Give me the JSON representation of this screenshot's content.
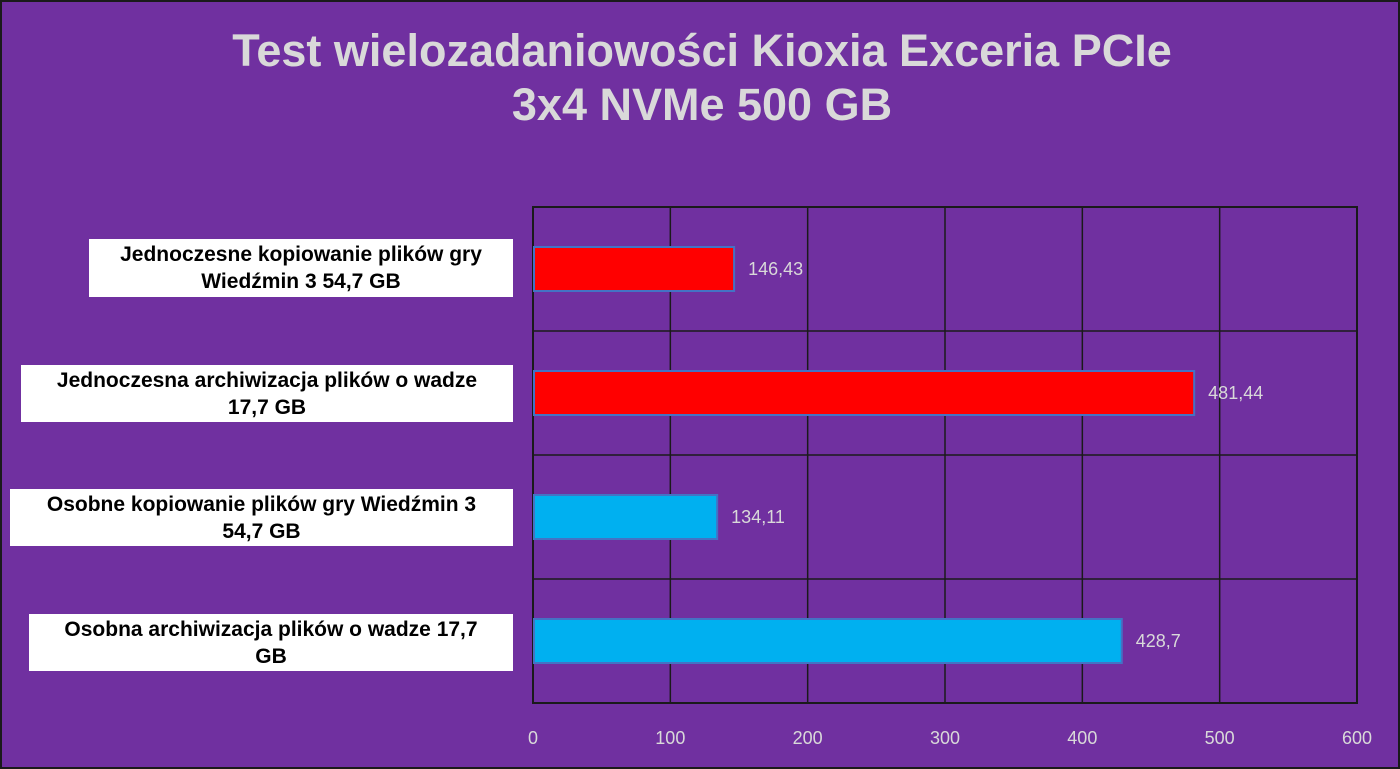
{
  "chart_data": {
    "type": "bar",
    "orientation": "horizontal",
    "title": "Test wielozadaniowości Kioxia Exceria PCIe 3x4 NVMe 500 GB",
    "title_lines": [
      "Test wielozadaniowości Kioxia Exceria PCIe",
      "3x4 NVMe 500 GB"
    ],
    "categories": [
      "Jednoczesne kopiowanie plików gry Wiedźmin 3 54,7 GB",
      "Jednoczesna archiwizacja plików o wadze 17,7 GB",
      "Osobne kopiowanie plików gry Wiedźmin 3 54,7 GB",
      "Osobna archiwizacja plików o wadze 17,7 GB"
    ],
    "category_lines": [
      [
        "Jednoczesne kopiowanie plików gry",
        "Wiedźmin 3 54,7 GB"
      ],
      [
        "Jednoczesna archiwizacja plików o wadze",
        "17,7 GB"
      ],
      [
        "Osobne kopiowanie plików gry Wiedźmin 3",
        "54,7 GB"
      ],
      [
        "Osobna archiwizacja plików o wadze 17,7",
        "GB"
      ]
    ],
    "values": [
      146.43,
      481.44,
      134.11,
      428.7
    ],
    "value_labels": [
      "146,43",
      "481,44",
      "134,11",
      "428,7"
    ],
    "bar_colors": [
      "#FF0000",
      "#FF0000",
      "#00B0F0",
      "#00B0F0"
    ],
    "xlim": [
      0,
      600
    ],
    "x_ticks": [
      0,
      100,
      200,
      300,
      400,
      500,
      600
    ],
    "x_tick_labels": [
      "0",
      "100",
      "200",
      "300",
      "400",
      "500",
      "600"
    ],
    "grid": true,
    "legend": "none",
    "xlabel": "",
    "ylabel": ""
  },
  "colors": {
    "background": "#7030A0",
    "title": "#D9D9D9",
    "tick_labels": "#D9D9D9",
    "value_labels": "#D9D9D9",
    "grid": "#1a1a1a",
    "bar_border": "#4472C4"
  }
}
